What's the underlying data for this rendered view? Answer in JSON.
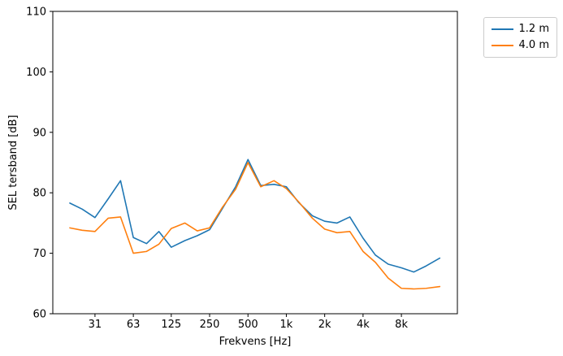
{
  "figure": {
    "background": "#ffffff",
    "text_color": "#000000",
    "spine_color": "#000000"
  },
  "chart_data": {
    "type": "line",
    "title": "",
    "xlabel": "Frekvens [Hz]",
    "ylabel": "SEL tersband [dB]",
    "x_scale": "log",
    "grid": false,
    "xlim": [
      14.7,
      22000
    ],
    "ylim": [
      60,
      110
    ],
    "xticks": {
      "values": [
        31.5,
        63,
        125,
        250,
        500,
        1000,
        2000,
        4000,
        8000
      ],
      "labels": [
        "31",
        "63",
        "125",
        "250",
        "500",
        "1k",
        "2k",
        "4k",
        "8k"
      ]
    },
    "yticks": {
      "values": [
        60,
        70,
        80,
        90,
        100,
        110
      ],
      "labels": [
        "60",
        "70",
        "80",
        "90",
        "100",
        "110"
      ]
    },
    "x": [
      20,
      25,
      31.5,
      40,
      50,
      63,
      80,
      100,
      125,
      160,
      200,
      250,
      315,
      400,
      500,
      630,
      800,
      1000,
      1250,
      1600,
      2000,
      2500,
      3150,
      4000,
      5000,
      6300,
      8000,
      10000,
      12500,
      16000
    ],
    "series": [
      {
        "name": "1.2 m",
        "color": "#1f77b4",
        "values": [
          78.3,
          77.3,
          75.9,
          79.0,
          82.0,
          72.6,
          71.6,
          73.6,
          71.0,
          72.1,
          72.9,
          73.9,
          77.4,
          81.0,
          85.5,
          81.2,
          81.4,
          81.0,
          78.4,
          76.2,
          75.3,
          75.0,
          76.0,
          72.5,
          69.7,
          68.2,
          67.6,
          66.9,
          67.9,
          69.2
        ]
      },
      {
        "name": "4.0 m",
        "color": "#ff7f0e",
        "values": [
          74.2,
          73.8,
          73.6,
          75.8,
          76.0,
          70.0,
          70.3,
          71.5,
          74.1,
          75.0,
          73.7,
          74.2,
          77.6,
          80.6,
          85.0,
          81.0,
          82.0,
          80.7,
          78.5,
          75.8,
          74.0,
          73.4,
          73.6,
          70.3,
          68.5,
          65.9,
          64.2,
          64.1,
          64.2,
          64.5
        ]
      }
    ],
    "legend": {
      "position": "upper-right-outside",
      "entries": [
        "1.2 m",
        "4.0 m"
      ]
    }
  }
}
